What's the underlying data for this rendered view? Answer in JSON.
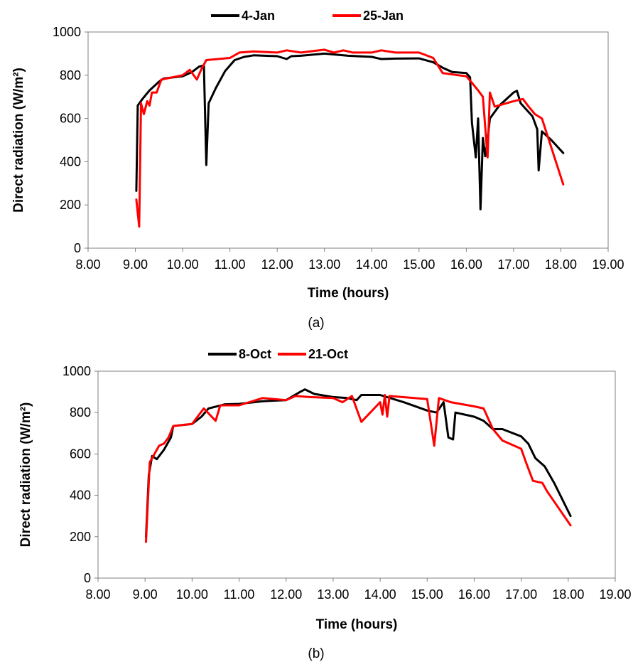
{
  "chart_data": [
    {
      "type": "line",
      "panel_label": "(a)",
      "xlabel": "Time (hours)",
      "ylabel": "Direct radiation (W/m²)",
      "xlim": [
        8,
        19
      ],
      "ylim": [
        0,
        1000
      ],
      "x_ticks": [
        "8.00",
        "9.00",
        "10.00",
        "11.00",
        "12.00",
        "13.00",
        "14.00",
        "15.00",
        "16.00",
        "17.00",
        "18.00",
        "19.00"
      ],
      "y_ticks": [
        "0",
        "200",
        "400",
        "600",
        "800",
        "1000"
      ],
      "grid": false,
      "legend_position": "top",
      "series": [
        {
          "name": "4-Jan",
          "color": "#000000",
          "points": [
            [
              9.02,
              265
            ],
            [
              9.05,
              660
            ],
            [
              9.15,
              690
            ],
            [
              9.3,
              730
            ],
            [
              9.5,
              770
            ],
            [
              9.6,
              785
            ],
            [
              10.0,
              795
            ],
            [
              10.2,
              815
            ],
            [
              10.35,
              840
            ],
            [
              10.45,
              845
            ],
            [
              10.5,
              385
            ],
            [
              10.55,
              670
            ],
            [
              10.7,
              740
            ],
            [
              10.9,
              820
            ],
            [
              11.1,
              870
            ],
            [
              11.3,
              885
            ],
            [
              11.5,
              892
            ],
            [
              12.0,
              888
            ],
            [
              12.2,
              875
            ],
            [
              12.3,
              888
            ],
            [
              12.5,
              890
            ],
            [
              13.0,
              900
            ],
            [
              13.5,
              890
            ],
            [
              14.0,
              885
            ],
            [
              14.2,
              875
            ],
            [
              14.5,
              877
            ],
            [
              15.0,
              878
            ],
            [
              15.3,
              860
            ],
            [
              15.5,
              835
            ],
            [
              15.7,
              815
            ],
            [
              16.0,
              810
            ],
            [
              16.08,
              790
            ],
            [
              16.12,
              580
            ],
            [
              16.2,
              420
            ],
            [
              16.25,
              600
            ],
            [
              16.3,
              180
            ],
            [
              16.35,
              510
            ],
            [
              16.4,
              425
            ],
            [
              16.45,
              500
            ],
            [
              16.5,
              600
            ],
            [
              16.7,
              660
            ],
            [
              17.0,
              720
            ],
            [
              17.07,
              728
            ],
            [
              17.15,
              670
            ],
            [
              17.4,
              610
            ],
            [
              17.5,
              550
            ],
            [
              17.53,
              360
            ],
            [
              17.6,
              540
            ],
            [
              17.8,
              500
            ],
            [
              18.05,
              440
            ]
          ]
        },
        {
          "name": "25-Jan",
          "color": "#ff0000",
          "points": [
            [
              9.02,
              225
            ],
            [
              9.08,
              100
            ],
            [
              9.12,
              670
            ],
            [
              9.18,
              620
            ],
            [
              9.25,
              680
            ],
            [
              9.3,
              660
            ],
            [
              9.35,
              720
            ],
            [
              9.45,
              720
            ],
            [
              9.55,
              780
            ],
            [
              10.0,
              800
            ],
            [
              10.15,
              825
            ],
            [
              10.3,
              780
            ],
            [
              10.4,
              830
            ],
            [
              10.5,
              870
            ],
            [
              11.0,
              880
            ],
            [
              11.2,
              905
            ],
            [
              11.5,
              910
            ],
            [
              12.0,
              905
            ],
            [
              12.2,
              915
            ],
            [
              12.5,
              905
            ],
            [
              13.0,
              918
            ],
            [
              13.2,
              905
            ],
            [
              13.4,
              915
            ],
            [
              13.6,
              905
            ],
            [
              14.0,
              905
            ],
            [
              14.2,
              915
            ],
            [
              14.5,
              905
            ],
            [
              15.0,
              905
            ],
            [
              15.3,
              880
            ],
            [
              15.5,
              810
            ],
            [
              16.0,
              795
            ],
            [
              16.1,
              770
            ],
            [
              16.25,
              730
            ],
            [
              16.35,
              700
            ],
            [
              16.45,
              420
            ],
            [
              16.5,
              720
            ],
            [
              16.6,
              655
            ],
            [
              17.0,
              680
            ],
            [
              17.2,
              690
            ],
            [
              17.3,
              660
            ],
            [
              17.45,
              620
            ],
            [
              17.6,
              600
            ],
            [
              18.05,
              295
            ]
          ]
        }
      ]
    },
    {
      "type": "line",
      "panel_label": "(b)",
      "xlabel": "Time (hours)",
      "ylabel": "Direct radiation (W/m²)",
      "xlim": [
        8,
        19
      ],
      "ylim": [
        0,
        1000
      ],
      "x_ticks": [
        "8.00",
        "9.00",
        "10.00",
        "11.00",
        "12.00",
        "13.00",
        "14.00",
        "15.00",
        "16.00",
        "17.00",
        "18.00",
        "19.00"
      ],
      "y_ticks": [
        "0",
        "200",
        "400",
        "600",
        "800",
        "1000"
      ],
      "grid": false,
      "legend_position": "top",
      "series": [
        {
          "name": "8-Oct",
          "color": "#000000",
          "points": [
            [
              9.02,
              200
            ],
            [
              9.08,
              500
            ],
            [
              9.15,
              590
            ],
            [
              9.25,
              575
            ],
            [
              9.4,
              620
            ],
            [
              9.55,
              680
            ],
            [
              9.6,
              735
            ],
            [
              10.0,
              745
            ],
            [
              10.2,
              780
            ],
            [
              10.35,
              820
            ],
            [
              10.7,
              840
            ],
            [
              11.0,
              842
            ],
            [
              11.5,
              855
            ],
            [
              12.0,
              860
            ],
            [
              12.3,
              900
            ],
            [
              12.4,
              912
            ],
            [
              12.6,
              890
            ],
            [
              13.0,
              875
            ],
            [
              13.3,
              870
            ],
            [
              13.5,
              860
            ],
            [
              13.6,
              885
            ],
            [
              14.0,
              885
            ],
            [
              14.5,
              850
            ],
            [
              15.0,
              810
            ],
            [
              15.2,
              800
            ],
            [
              15.35,
              850
            ],
            [
              15.45,
              680
            ],
            [
              15.55,
              670
            ],
            [
              15.6,
              800
            ],
            [
              16.0,
              780
            ],
            [
              16.2,
              760
            ],
            [
              16.4,
              720
            ],
            [
              16.6,
              720
            ],
            [
              17.0,
              685
            ],
            [
              17.15,
              650
            ],
            [
              17.3,
              580
            ],
            [
              17.5,
              540
            ],
            [
              17.7,
              460
            ],
            [
              18.05,
              300
            ]
          ]
        },
        {
          "name": "21-Oct",
          "color": "#ff0000",
          "points": [
            [
              9.02,
              175
            ],
            [
              9.1,
              560
            ],
            [
              9.2,
              600
            ],
            [
              9.3,
              640
            ],
            [
              9.4,
              650
            ],
            [
              9.5,
              680
            ],
            [
              9.6,
              735
            ],
            [
              10.0,
              745
            ],
            [
              10.25,
              820
            ],
            [
              10.5,
              760
            ],
            [
              10.6,
              835
            ],
            [
              11.0,
              835
            ],
            [
              11.5,
              870
            ],
            [
              12.0,
              860
            ],
            [
              12.2,
              880
            ],
            [
              12.5,
              875
            ],
            [
              13.0,
              870
            ],
            [
              13.2,
              850
            ],
            [
              13.4,
              880
            ],
            [
              13.6,
              755
            ],
            [
              14.0,
              850
            ],
            [
              14.05,
              790
            ],
            [
              14.1,
              885
            ],
            [
              14.15,
              780
            ],
            [
              14.2,
              880
            ],
            [
              15.0,
              865
            ],
            [
              15.15,
              640
            ],
            [
              15.25,
              870
            ],
            [
              15.5,
              850
            ],
            [
              16.0,
              830
            ],
            [
              16.2,
              820
            ],
            [
              16.4,
              720
            ],
            [
              16.6,
              665
            ],
            [
              17.0,
              625
            ],
            [
              17.1,
              560
            ],
            [
              17.25,
              470
            ],
            [
              17.45,
              460
            ],
            [
              17.55,
              420
            ],
            [
              18.05,
              255
            ]
          ]
        }
      ]
    }
  ]
}
